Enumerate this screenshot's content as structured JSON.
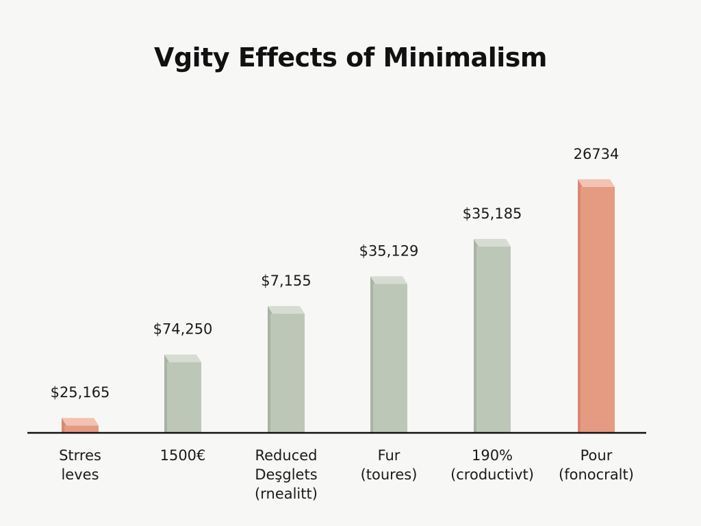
{
  "chart_data": {
    "type": "bar",
    "title": "Vgity Effects of Minimalism",
    "xlabel": "",
    "ylabel": "",
    "grid": false,
    "legend": "none",
    "categories": [
      [
        "Strres",
        "leves"
      ],
      [
        "1500€"
      ],
      [
        "Reduced",
        "Deşglets",
        "(rnealitt)"
      ],
      [
        "Fur",
        "(toures)"
      ],
      [
        "190%",
        "(croductivt)"
      ],
      [
        "Pour",
        "(fonocralt)"
      ]
    ],
    "value_labels": [
      "$25,165",
      "$74,250",
      "$7,155",
      "$35,129",
      "$35,185",
      "26734"
    ],
    "values": [
      4,
      21,
      34,
      42,
      52,
      68
    ],
    "ylim": [
      0,
      72
    ],
    "colors": {
      "highlight": "#e59a82",
      "highlight_top": "#f2c2b2",
      "highlight_side": "#d88870",
      "base": "#bdc7b8",
      "base_top": "#d6dcd2",
      "base_side": "#a9b3a4",
      "axis": "#111111"
    },
    "bar_colors": [
      "highlight",
      "base",
      "base",
      "base",
      "base",
      "highlight"
    ]
  }
}
